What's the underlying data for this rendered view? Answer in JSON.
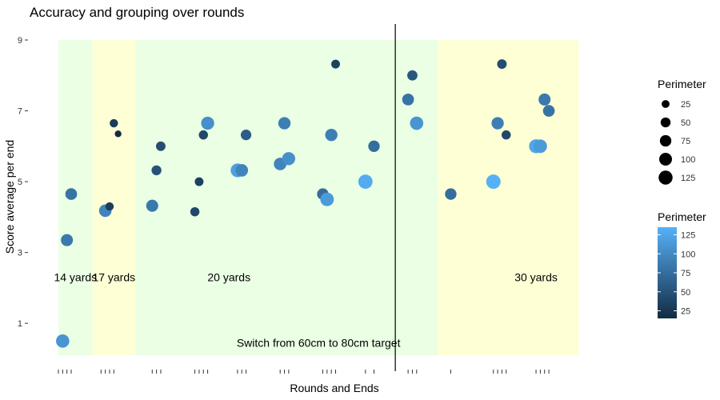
{
  "chart_data": {
    "type": "scatter",
    "title": "Accuracy and grouping over rounds",
    "xlabel": "Rounds and Ends",
    "ylabel": "Score average per end",
    "ylim": [
      0.1,
      9.0
    ],
    "xlim": [
      0.0,
      13.0
    ],
    "y_ticks": [
      1,
      3,
      5,
      7,
      9
    ],
    "bands": [
      {
        "x0": 0.0,
        "x1": 0.8,
        "color": "#eaffe4",
        "label": "14 yards",
        "label_x": 0.4,
        "label_y": 2.3
      },
      {
        "x0": 0.8,
        "x1": 1.8,
        "color": "#ffffd6",
        "label": "17 yards",
        "label_x": 1.3,
        "label_y": 2.3
      },
      {
        "x0": 1.8,
        "x1": 8.9,
        "color": "#eaffe4",
        "label": "20 yards",
        "label_x": 4.0,
        "label_y": 2.3
      },
      {
        "x0": 8.9,
        "x1": 12.2,
        "color": "#ffffd6",
        "label": "30 yards",
        "label_x": 11.2,
        "label_y": 2.3
      }
    ],
    "vline": {
      "x": 7.9
    },
    "annotation": {
      "text": "Switch from 60cm to 80cm target",
      "x": 6.1,
      "y": 0.45
    },
    "x_ticks": [
      0.0,
      0.1,
      0.2,
      0.3,
      1.0,
      1.1,
      1.2,
      1.3,
      2.2,
      2.3,
      2.4,
      3.2,
      3.3,
      3.4,
      3.5,
      4.2,
      4.3,
      4.4,
      5.2,
      5.3,
      5.4,
      6.2,
      6.3,
      6.4,
      6.5,
      7.2,
      7.4,
      8.2,
      8.3,
      8.4,
      9.2,
      10.2,
      10.3,
      10.4,
      10.5,
      11.2,
      11.3,
      11.4,
      11.5
    ],
    "points": [
      {
        "x": 0.1,
        "y": 0.5,
        "perimeter": 110
      },
      {
        "x": 0.2,
        "y": 3.35,
        "perimeter": 85
      },
      {
        "x": 0.3,
        "y": 4.65,
        "perimeter": 80
      },
      {
        "x": 1.1,
        "y": 4.18,
        "perimeter": 95
      },
      {
        "x": 1.2,
        "y": 4.3,
        "perimeter": 30
      },
      {
        "x": 1.3,
        "y": 6.65,
        "perimeter": 30
      },
      {
        "x": 1.4,
        "y": 6.35,
        "perimeter": 15
      },
      {
        "x": 2.2,
        "y": 4.32,
        "perimeter": 85
      },
      {
        "x": 2.3,
        "y": 5.32,
        "perimeter": 50
      },
      {
        "x": 2.4,
        "y": 6.0,
        "perimeter": 45
      },
      {
        "x": 3.2,
        "y": 4.15,
        "perimeter": 40
      },
      {
        "x": 3.3,
        "y": 5.0,
        "perimeter": 35
      },
      {
        "x": 3.4,
        "y": 6.32,
        "perimeter": 40
      },
      {
        "x": 3.5,
        "y": 6.65,
        "perimeter": 105
      },
      {
        "x": 4.2,
        "y": 5.32,
        "perimeter": 120
      },
      {
        "x": 4.3,
        "y": 5.32,
        "perimeter": 95
      },
      {
        "x": 4.4,
        "y": 6.32,
        "perimeter": 60
      },
      {
        "x": 5.2,
        "y": 5.5,
        "perimeter": 95
      },
      {
        "x": 5.3,
        "y": 6.65,
        "perimeter": 90
      },
      {
        "x": 5.4,
        "y": 5.65,
        "perimeter": 105
      },
      {
        "x": 6.2,
        "y": 4.65,
        "perimeter": 75
      },
      {
        "x": 6.3,
        "y": 4.5,
        "perimeter": 115
      },
      {
        "x": 6.4,
        "y": 6.32,
        "perimeter": 90
      },
      {
        "x": 6.5,
        "y": 8.32,
        "perimeter": 35
      },
      {
        "x": 7.2,
        "y": 5.0,
        "perimeter": 130
      },
      {
        "x": 7.4,
        "y": 6.0,
        "perimeter": 75
      },
      {
        "x": 8.2,
        "y": 7.32,
        "perimeter": 80
      },
      {
        "x": 8.3,
        "y": 8.0,
        "perimeter": 55
      },
      {
        "x": 8.4,
        "y": 6.65,
        "perimeter": 110
      },
      {
        "x": 9.2,
        "y": 4.65,
        "perimeter": 75
      },
      {
        "x": 10.2,
        "y": 5.0,
        "perimeter": 135
      },
      {
        "x": 10.3,
        "y": 6.65,
        "perimeter": 90
      },
      {
        "x": 10.4,
        "y": 8.32,
        "perimeter": 45
      },
      {
        "x": 10.5,
        "y": 6.32,
        "perimeter": 40
      },
      {
        "x": 11.2,
        "y": 6.0,
        "perimeter": 125
      },
      {
        "x": 11.3,
        "y": 6.0,
        "perimeter": 115
      },
      {
        "x": 11.4,
        "y": 7.32,
        "perimeter": 85
      },
      {
        "x": 11.5,
        "y": 7.0,
        "perimeter": 80
      }
    ],
    "legend_size": {
      "title": "Perimeter",
      "values": [
        25,
        50,
        75,
        100,
        125
      ]
    },
    "legend_color": {
      "title": "Perimeter",
      "ticks": [
        25,
        50,
        75,
        100,
        125
      ],
      "low_color": "#132b43",
      "high_color": "#56b1f7",
      "min": 15,
      "max": 135
    }
  }
}
